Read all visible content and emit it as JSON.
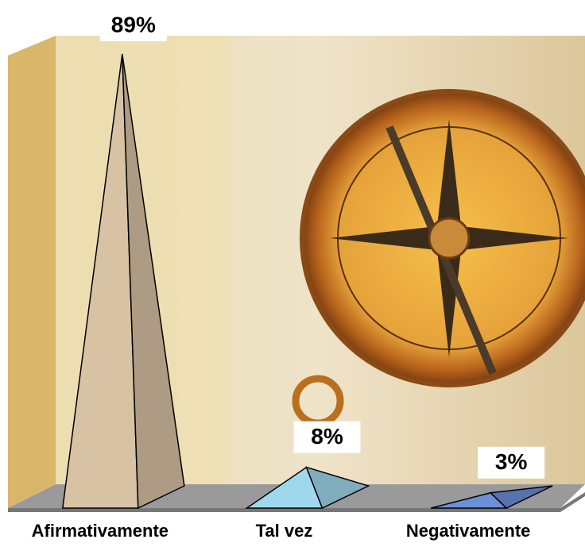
{
  "chart_data": {
    "type": "pyramid3d",
    "categories": [
      "Afirmativamente",
      "Tal vez",
      "Negativamente"
    ],
    "values": [
      89,
      8,
      3
    ],
    "value_labels": [
      "89%",
      "8%",
      "3%"
    ],
    "colors": [
      "#d8c2a4",
      "#9fd8ee",
      "#6d8fda"
    ]
  }
}
